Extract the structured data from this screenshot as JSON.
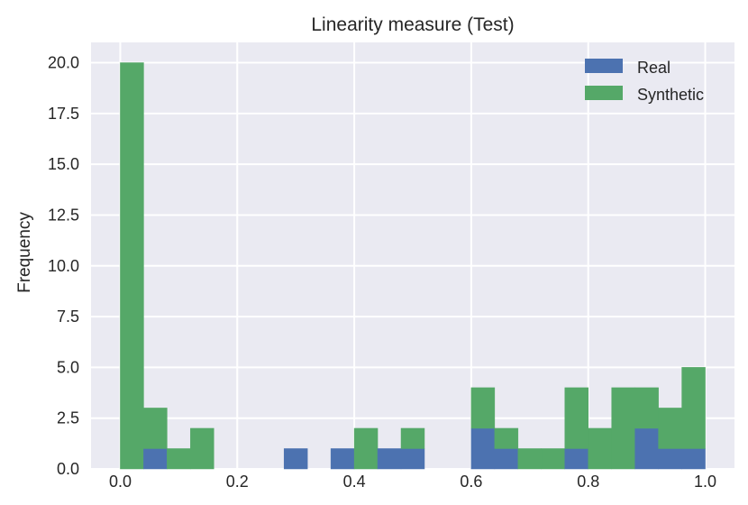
{
  "chart_data": {
    "type": "bar",
    "stacked": true,
    "title": "Linearity measure (Test)",
    "xlabel": "",
    "ylabel": "Frequency",
    "xlim": [
      -0.05,
      1.05
    ],
    "ylim": [
      0,
      21
    ],
    "bin_width": 0.04,
    "bin_starts": [
      0.0,
      0.04,
      0.08,
      0.12,
      0.16,
      0.2,
      0.24,
      0.28,
      0.32,
      0.36,
      0.4,
      0.44,
      0.48,
      0.52,
      0.56,
      0.6,
      0.64,
      0.68,
      0.72,
      0.76,
      0.8,
      0.84,
      0.88,
      0.92,
      0.96
    ],
    "series": [
      {
        "name": "Real",
        "color": "#4C72B0",
        "values": [
          0,
          1,
          0,
          0,
          0,
          0,
          0,
          1,
          0,
          1,
          0,
          1,
          1,
          0,
          0,
          2,
          1,
          0,
          0,
          1,
          0,
          0,
          2,
          1,
          1
        ]
      },
      {
        "name": "Synthetic",
        "color": "#55A868",
        "values": [
          20,
          2,
          1,
          2,
          0,
          0,
          0,
          0,
          0,
          0,
          2,
          0,
          1,
          0,
          0,
          2,
          1,
          1,
          1,
          3,
          2,
          4,
          2,
          2,
          4
        ]
      }
    ],
    "xticks": [
      "0.0",
      "0.2",
      "0.4",
      "0.6",
      "0.8",
      "1.0"
    ],
    "xtick_values": [
      0,
      0.2,
      0.4,
      0.6,
      0.8,
      1.0
    ],
    "yticks": [
      "0.0",
      "2.5",
      "5.0",
      "7.5",
      "10.0",
      "12.5",
      "15.0",
      "17.5",
      "20.0"
    ],
    "ytick_values": [
      0,
      2.5,
      5,
      7.5,
      10,
      12.5,
      15,
      17.5,
      20
    ],
    "grid": true,
    "background": "#EAEAF2",
    "legend": "top-right"
  }
}
